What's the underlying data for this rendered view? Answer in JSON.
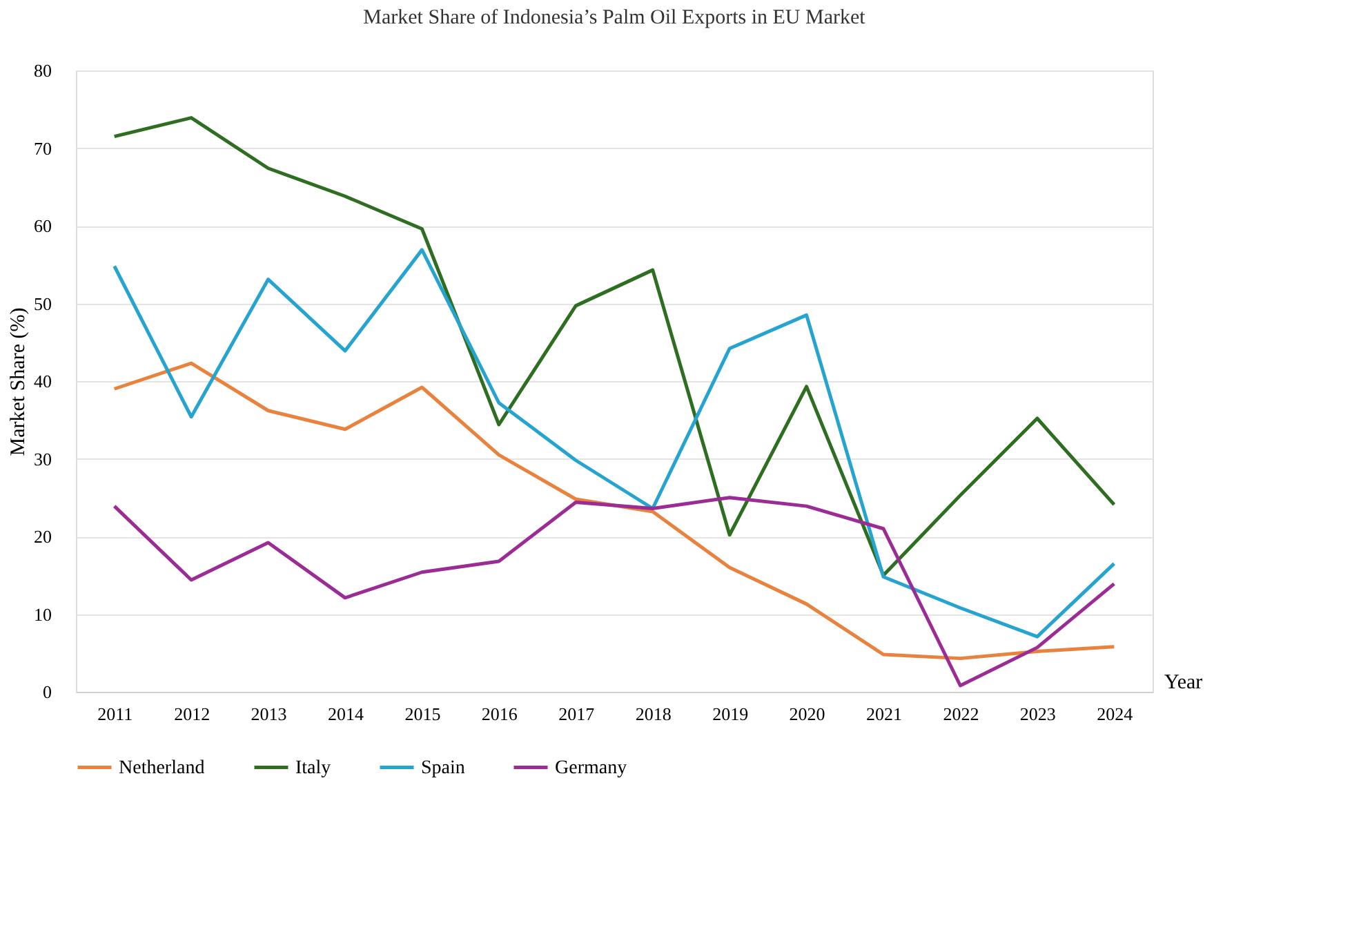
{
  "chart_data": {
    "type": "line",
    "title": "Market Share of Indonesia’s Palm Oil Exports in EU Market",
    "xlabel": "Year",
    "ylabel": "Market Share (%)",
    "categories": [
      "2011",
      "2012",
      "2013",
      "2014",
      "2015",
      "2016",
      "2017",
      "2018",
      "2019",
      "2020",
      "2021",
      "2022",
      "2023",
      "2024"
    ],
    "series": [
      {
        "name": "Netherland",
        "color": "#e8823d",
        "values": [
          39,
          42.3,
          36.2,
          33.8,
          39.2,
          30.5,
          24.8,
          23.2,
          16,
          11.3,
          4.8,
          4.3,
          5.2,
          5.8
        ]
      },
      {
        "name": "Italy",
        "color": "#2d6e21",
        "values": [
          71.5,
          73.9,
          67.4,
          63.8,
          59.6,
          34.4,
          49.7,
          54.3,
          20.2,
          39.3,
          15,
          25.3,
          35.2,
          24.1
        ]
      },
      {
        "name": "Spain",
        "color": "#25a4cf",
        "values": [
          54.8,
          35.4,
          53.1,
          43.9,
          56.9,
          37.2,
          29.8,
          23.6,
          44.2,
          48.5,
          14.8,
          10.8,
          7.1,
          16.5
        ]
      },
      {
        "name": "Germany",
        "color": "#9b2c96",
        "values": [
          23.9,
          14.4,
          19.2,
          12.1,
          15.4,
          16.8,
          24.4,
          23.6,
          25,
          23.9,
          21,
          0.8,
          5.7,
          13.9
        ]
      }
    ],
    "ylim": [
      0,
      80
    ],
    "yticks": [
      0,
      10,
      20,
      30,
      40,
      50,
      60,
      70,
      80
    ],
    "grid": "y",
    "legend": "bottom",
    "marker": "none",
    "line_style": "solid"
  }
}
